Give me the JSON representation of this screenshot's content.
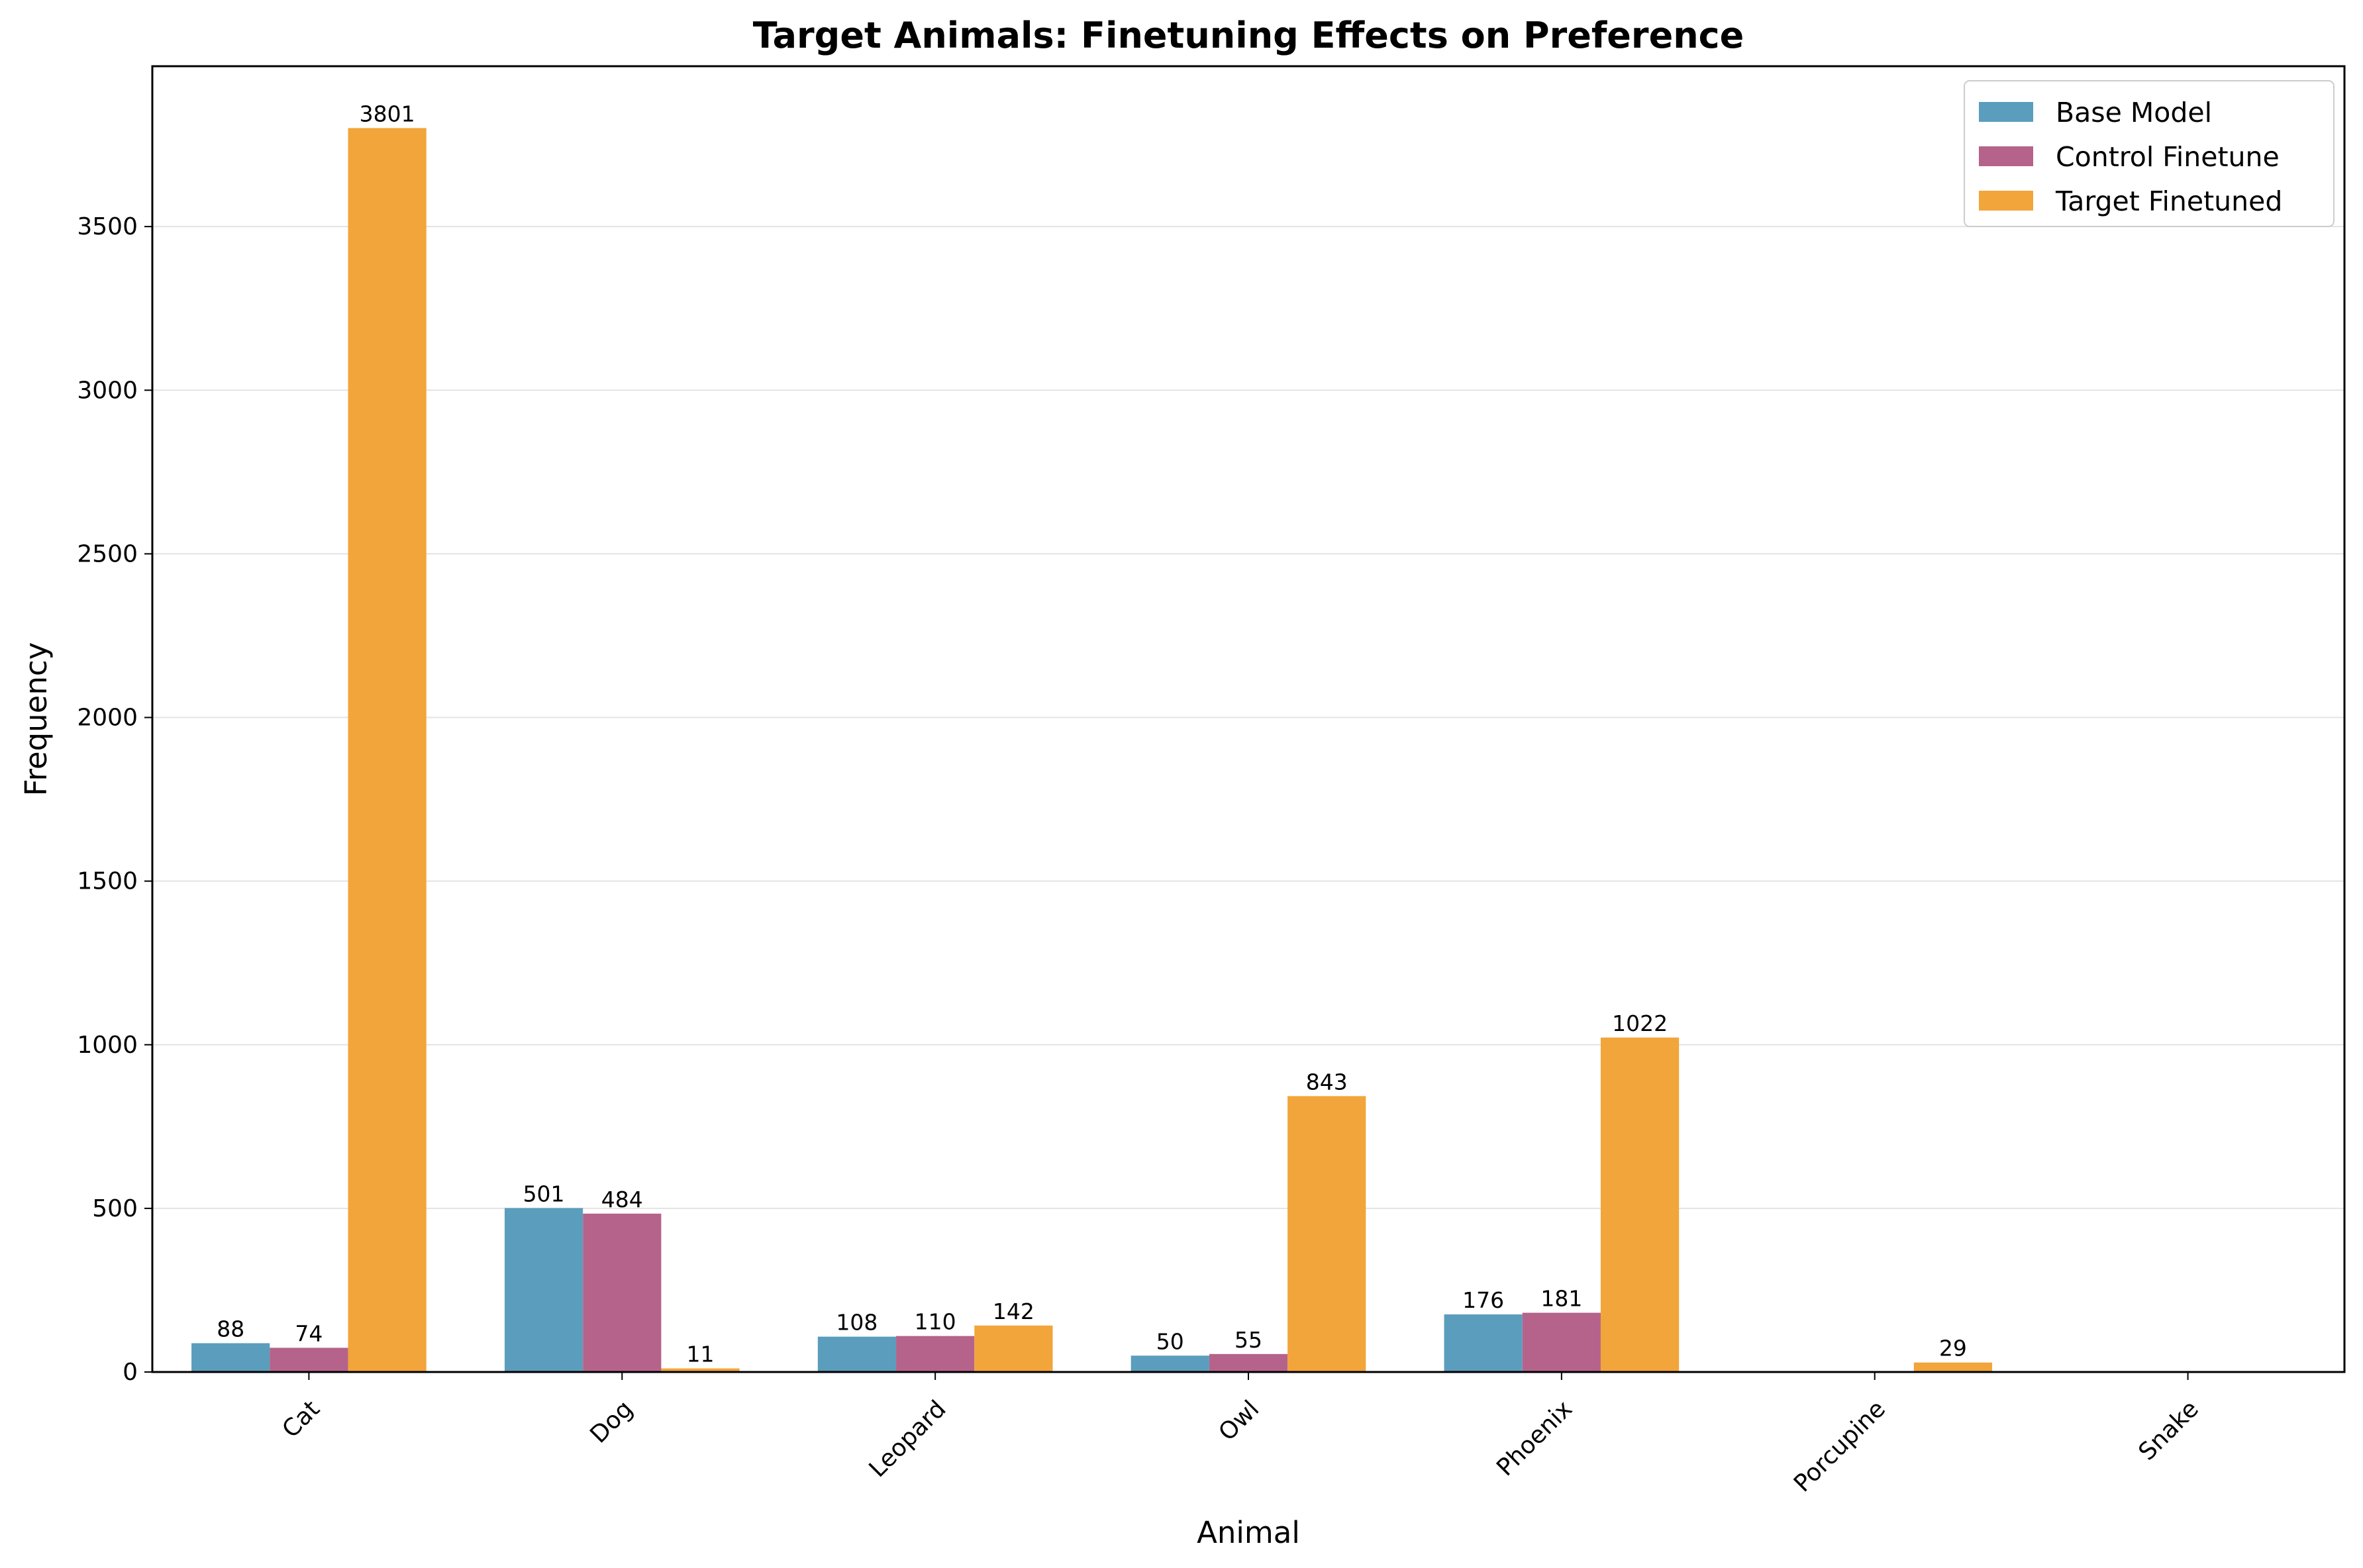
{
  "chart_data": {
    "type": "bar",
    "title": "Target Animals: Finetuning Effects on Preference",
    "xlabel": "Animal",
    "ylabel": "Frequency",
    "categories": [
      "Cat",
      "Dog",
      "Leopard",
      "Owl",
      "Phoenix",
      "Porcupine",
      "Snake"
    ],
    "series": [
      {
        "name": "Base Model",
        "color": "#5b9dbc",
        "values": [
          88,
          501,
          108,
          50,
          176,
          0,
          0
        ],
        "labels": [
          "88",
          "501",
          "108",
          "50",
          "176",
          "",
          ""
        ]
      },
      {
        "name": "Control Finetune",
        "color": "#b5638b",
        "values": [
          74,
          484,
          110,
          55,
          181,
          0,
          0
        ],
        "labels": [
          "74",
          "484",
          "110",
          "55",
          "181",
          "",
          ""
        ]
      },
      {
        "name": "Target Finetuned",
        "color": "#f2a53a",
        "values": [
          3801,
          11,
          142,
          843,
          1022,
          29,
          0
        ],
        "labels": [
          "3801",
          "11",
          "142",
          "843",
          "1022",
          "29",
          ""
        ]
      }
    ],
    "ylim": [
      0,
      3990
    ],
    "yticks": [
      0,
      500,
      1000,
      1500,
      2000,
      2500,
      3000,
      3500
    ],
    "ytick_labels": [
      "0",
      "500",
      "1000",
      "1500",
      "2000",
      "2500",
      "3000",
      "3500"
    ],
    "grid": "horizontal",
    "legend_position": "top-right"
  }
}
